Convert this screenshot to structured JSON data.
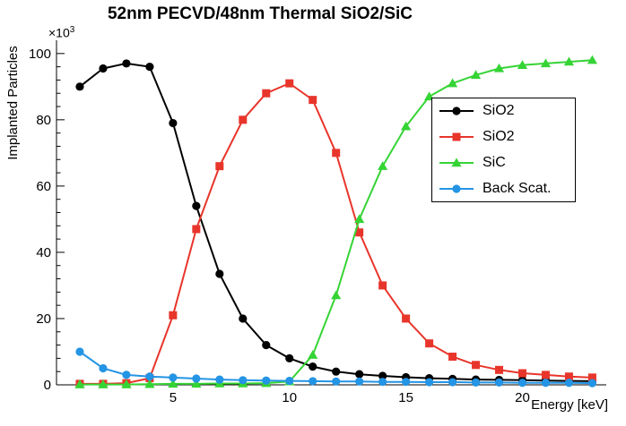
{
  "chart_data": {
    "type": "line",
    "title": "52nm PECVD/48nm Thermal SiO2/SiC",
    "xlabel": "Energy [keV]",
    "ylabel": "Implanted Particles",
    "y_multiplier_base": "×10",
    "y_multiplier_exp": "3",
    "xlim": [
      0,
      23.6
    ],
    "ylim": [
      0,
      104
    ],
    "x_major_ticks": [
      5,
      10,
      15,
      20
    ],
    "y_major_ticks": [
      0,
      20,
      40,
      60,
      80,
      100
    ],
    "y_minor_step": 4,
    "grid": false,
    "legend_position": "upper-right",
    "x": [
      1,
      2,
      3,
      4,
      5,
      6,
      7,
      8,
      9,
      10,
      11,
      12,
      13,
      14,
      15,
      16,
      17,
      18,
      19,
      20,
      21,
      22,
      23
    ],
    "series": [
      {
        "name": "SiO2",
        "color": "#000000",
        "marker": "circle",
        "values": [
          90,
          95.5,
          97,
          96,
          79,
          54,
          33.5,
          20,
          12,
          8,
          5.5,
          4,
          3.2,
          2.7,
          2.3,
          2.0,
          1.8,
          1.6,
          1.5,
          1.4,
          1.3,
          1.2,
          1.1
        ]
      },
      {
        "name": "SiO2",
        "color": "#e8352b",
        "marker": "square",
        "values": [
          0.3,
          0.3,
          0.5,
          2,
          21,
          47,
          66,
          80,
          88,
          91,
          86,
          70,
          46,
          30,
          20,
          12.5,
          8.5,
          6,
          4.5,
          3.5,
          3,
          2.5,
          2.2
        ]
      },
      {
        "name": "SiC",
        "color": "#35d435",
        "marker": "triangle",
        "values": [
          0.1,
          0.1,
          0.1,
          0.2,
          0.3,
          0.3,
          0.4,
          0.4,
          0.5,
          1,
          9,
          27,
          50,
          66,
          78,
          87,
          91,
          93.5,
          95.5,
          96.5,
          97,
          97.5,
          98
        ]
      },
      {
        "name": "Back Scat.",
        "color": "#2494e4",
        "marker": "circle",
        "values": [
          10,
          5,
          3,
          2.5,
          2.2,
          1.9,
          1.6,
          1.4,
          1.3,
          1.2,
          1.1,
          1.0,
          1.0,
          0.9,
          0.9,
          0.8,
          0.8,
          0.7,
          0.7,
          0.6,
          0.6,
          0.6,
          0.5
        ]
      }
    ]
  }
}
